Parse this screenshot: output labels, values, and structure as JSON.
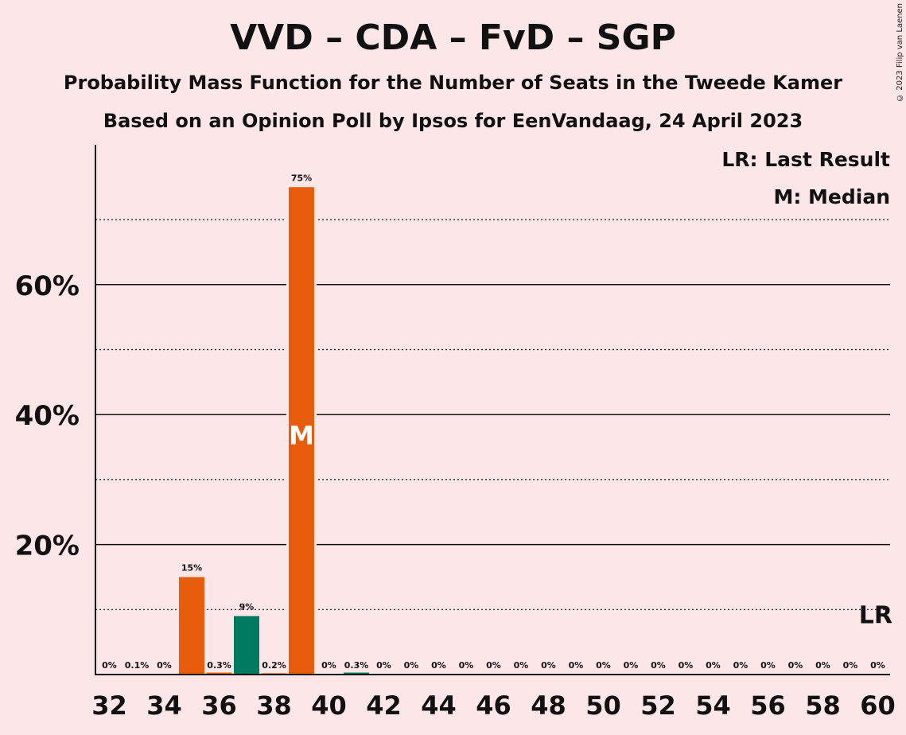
{
  "title": "VVD – CDA – FvD – SGP",
  "subtitle1": "Probability Mass Function for the Number of Seats in the Tweede Kamer",
  "subtitle2": "Based on an Opinion Poll by Ipsos for EenVandaag, 24 April 2023",
  "copyright": "© 2023 Filip van Laenen",
  "legend": {
    "last_result": "LR: Last Result",
    "median": "M: Median"
  },
  "colors": {
    "background": "#fde6e8",
    "orange": "#e85c0d",
    "green": "#007a5e",
    "axis": "#111111"
  },
  "chart_data": {
    "type": "bar",
    "x_tick_labels": [
      "32",
      "34",
      "36",
      "38",
      "40",
      "42",
      "44",
      "46",
      "48",
      "50",
      "52",
      "54",
      "56",
      "58",
      "60"
    ],
    "y_tick_labels": [
      "20%",
      "40%",
      "60%"
    ],
    "ylim": [
      0,
      81
    ],
    "solid_grid": [
      20,
      40,
      60
    ],
    "dotted_grid": [
      10,
      30,
      50,
      70
    ],
    "seats": [
      32,
      33,
      34,
      35,
      36,
      37,
      38,
      39,
      40,
      41,
      42,
      43,
      44,
      45,
      46,
      47,
      48,
      49,
      50,
      51,
      52,
      53,
      54,
      55,
      56,
      57,
      58,
      59,
      60
    ],
    "values": [
      0,
      0.1,
      0,
      15,
      0.3,
      9,
      0.2,
      75,
      0,
      0.3,
      0,
      0,
      0,
      0,
      0,
      0,
      0,
      0,
      0,
      0,
      0,
      0,
      0,
      0,
      0,
      0,
      0,
      0,
      0
    ],
    "labels": [
      "0%",
      "0.1%",
      "0%",
      "15%",
      "0.3%",
      "9%",
      "0.2%",
      "75%",
      "0%",
      "0.3%",
      "0%",
      "0%",
      "0%",
      "0%",
      "0%",
      "0%",
      "0%",
      "0%",
      "0%",
      "0%",
      "0%",
      "0%",
      "0%",
      "0%",
      "0%",
      "0%",
      "0%",
      "0%",
      "0%"
    ],
    "bar_colors": [
      "orange",
      "orange",
      "orange",
      "orange",
      "orange",
      "green",
      "orange",
      "orange",
      "orange",
      "green",
      "orange",
      "orange",
      "orange",
      "orange",
      "orange",
      "orange",
      "orange",
      "orange",
      "orange",
      "orange",
      "orange",
      "orange",
      "orange",
      "orange",
      "orange",
      "orange",
      "orange",
      "orange",
      "orange"
    ],
    "median_seat": 39,
    "median_label": "M",
    "last_result_seat": 60,
    "last_result_label": "LR"
  }
}
